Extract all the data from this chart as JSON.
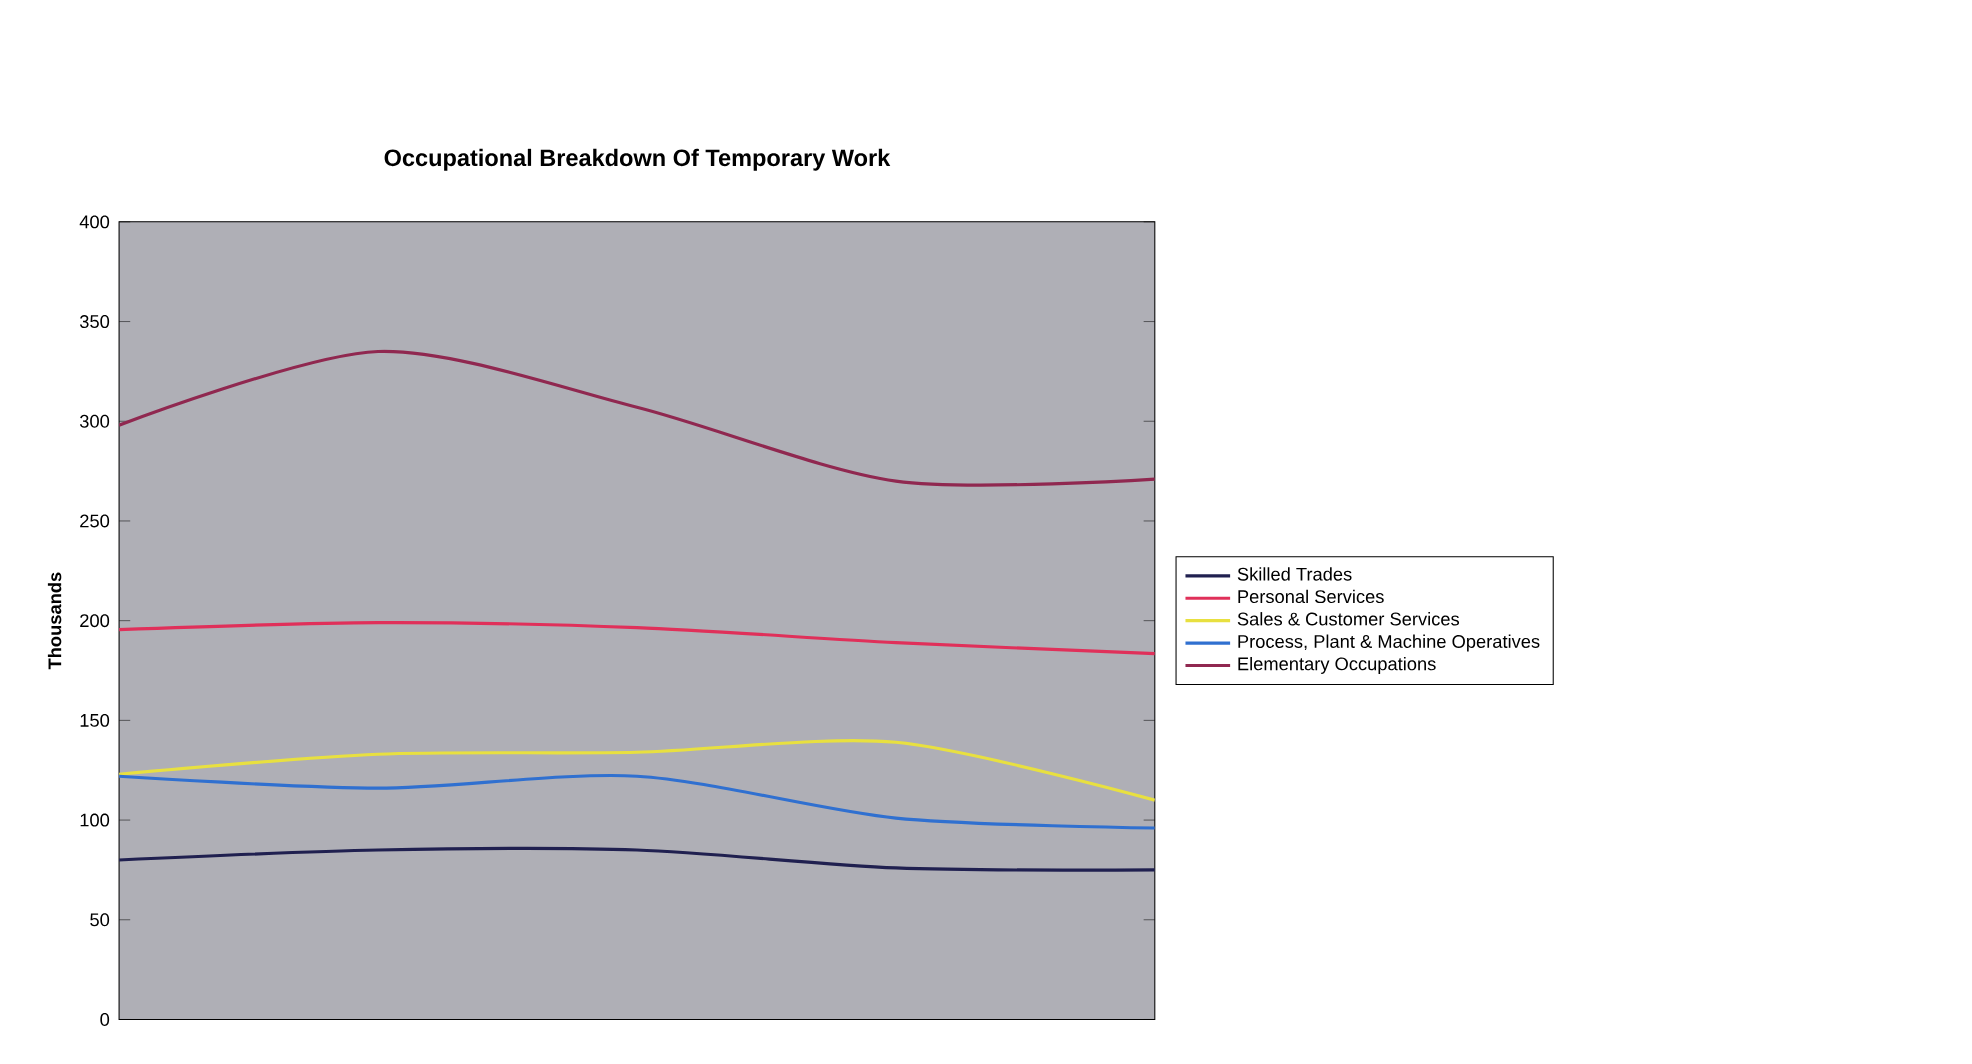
{
  "chart_data": {
    "type": "line",
    "title": "Occupational Breakdown Of Temporary Work",
    "ylabel": "Thousands",
    "categories": [
      null,
      null,
      null,
      null,
      null
    ],
    "series": [
      {
        "name": "Skilled Trades",
        "color": "#202050",
        "values": [
          80,
          85,
          85,
          76,
          75
        ]
      },
      {
        "name": "Personal Services",
        "color": "#e0305a",
        "values": [
          195.5,
          199,
          196.5,
          189,
          183.5
        ]
      },
      {
        "name": "Sales & Customer Services",
        "color": "#e8e040",
        "values": [
          123,
          133,
          134,
          139,
          110
        ]
      },
      {
        "name": "Process, Plant & Machine Operatives",
        "color": "#3070d0",
        "values": [
          122,
          116,
          122,
          101,
          96
        ]
      },
      {
        "name": "Elementary Occupations",
        "color": "#902850",
        "values": [
          298,
          335,
          307,
          270,
          271
        ]
      }
    ],
    "ylim": [
      0,
      400
    ],
    "yticks": [
      0,
      50,
      100,
      150,
      200,
      250,
      300,
      350,
      400
    ],
    "legend": "right",
    "grid": false,
    "marker": "none",
    "line_style": "solid"
  }
}
